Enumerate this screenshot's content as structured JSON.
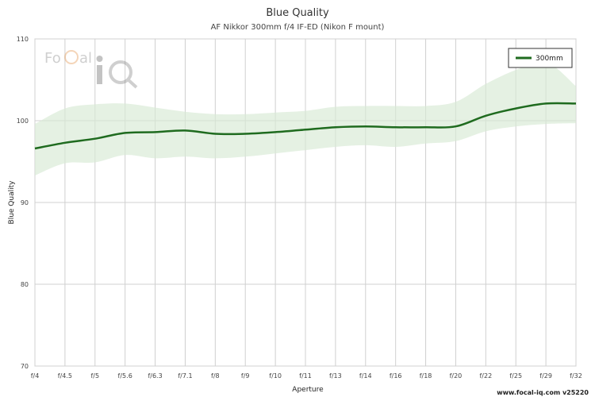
{
  "chart_data": {
    "type": "line",
    "title": "Blue Quality",
    "subtitle": "AF Nikkor 300mm f/4 IF-ED (Nikon F mount)",
    "xlabel": "Aperture",
    "ylabel": "Blue Quality",
    "categories": [
      "f/4",
      "f/4.5",
      "f/5",
      "f/5.6",
      "f/6.3",
      "f/7.1",
      "f/8",
      "f/9",
      "f/10",
      "f/11",
      "f/13",
      "f/14",
      "f/16",
      "f/18",
      "f/20",
      "f/22",
      "f/25",
      "f/29",
      "f/32"
    ],
    "ylim": [
      70,
      110
    ],
    "yticks": [
      70,
      80,
      90,
      100,
      110
    ],
    "grid": true,
    "legend_position": "top-right",
    "series": [
      {
        "name": "300mm",
        "color": "#1f6b1f",
        "values": [
          96.6,
          97.3,
          97.8,
          98.5,
          98.6,
          98.8,
          98.4,
          98.4,
          98.6,
          98.9,
          99.2,
          99.3,
          99.2,
          99.2,
          99.3,
          100.6,
          101.5,
          102.1,
          102.1
        ],
        "band_upper": [
          99.6,
          101.5,
          102.0,
          102.1,
          101.6,
          101.1,
          100.8,
          100.8,
          101.0,
          101.2,
          101.7,
          101.8,
          101.8,
          101.8,
          102.3,
          104.5,
          106.2,
          107.2,
          104.2
        ],
        "band_lower": [
          93.3,
          94.8,
          94.9,
          95.8,
          95.4,
          95.6,
          95.4,
          95.6,
          96.0,
          96.4,
          96.8,
          97.0,
          96.8,
          97.2,
          97.5,
          98.7,
          99.3,
          99.6,
          99.7
        ]
      }
    ]
  },
  "watermark": {
    "text": "FoCal iQ"
  },
  "footer": "www.focal-iq.com  v25220"
}
